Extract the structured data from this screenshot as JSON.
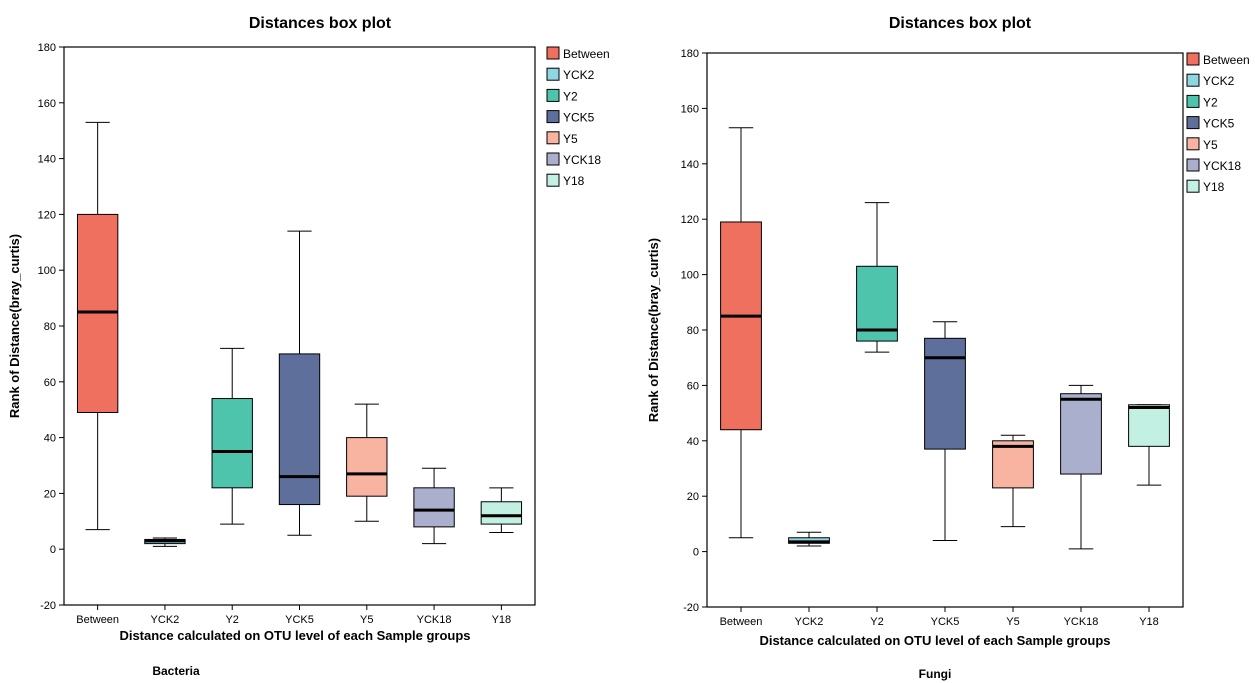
{
  "panels": [
    {
      "label": "Bacteria"
    },
    {
      "label": "Fungi"
    }
  ],
  "chart_data": [
    {
      "type": "box",
      "title": "Distances box plot",
      "xlabel": "Distance calculated on OTU level of each Sample groups",
      "ylabel": "Rank of Distance(bray_curtis)",
      "ylim": [
        -20,
        180
      ],
      "yticks": [
        -20,
        0,
        20,
        40,
        60,
        80,
        100,
        120,
        140,
        160,
        180
      ],
      "grid": false,
      "legend_position": "right",
      "categories": [
        "Between",
        "YCK2",
        "Y2",
        "YCK5",
        "Y5",
        "YCK18",
        "Y18"
      ],
      "colors": [
        "#F07060",
        "#8ED6E2",
        "#4FC4AC",
        "#5F6F9C",
        "#F8B4A0",
        "#A9AFCC",
        "#C2F1E3"
      ],
      "boxes": [
        {
          "min": 7,
          "q1": 49,
          "median": 85,
          "q3": 120,
          "max": 153
        },
        {
          "min": 1,
          "q1": 2,
          "median": 3,
          "q3": 3.5,
          "max": 4
        },
        {
          "min": 9,
          "q1": 22,
          "median": 35,
          "q3": 54,
          "max": 72
        },
        {
          "min": 5,
          "q1": 16,
          "median": 26,
          "q3": 70,
          "max": 114
        },
        {
          "min": 10,
          "q1": 19,
          "median": 27,
          "q3": 40,
          "max": 52
        },
        {
          "min": 2,
          "q1": 8,
          "median": 14,
          "q3": 22,
          "max": 29
        },
        {
          "min": 6,
          "q1": 9,
          "median": 12,
          "q3": 17,
          "max": 22
        }
      ]
    },
    {
      "type": "box",
      "title": "Distances box plot",
      "xlabel": "Distance calculated on OTU level of each Sample groups",
      "ylabel": "Rank of Distance(bray_curtis)",
      "ylim": [
        -20,
        180
      ],
      "yticks": [
        -20,
        0,
        20,
        40,
        60,
        80,
        100,
        120,
        140,
        160,
        180
      ],
      "grid": false,
      "legend_position": "right",
      "categories": [
        "Between",
        "YCK2",
        "Y2",
        "YCK5",
        "Y5",
        "YCK18",
        "Y18"
      ],
      "colors": [
        "#F07060",
        "#8ED6E2",
        "#4FC4AC",
        "#5F6F9C",
        "#F8B4A0",
        "#A9AFCC",
        "#C2F1E3"
      ],
      "boxes": [
        {
          "min": 5,
          "q1": 44,
          "median": 85,
          "q3": 119,
          "max": 153
        },
        {
          "min": 2,
          "q1": 3,
          "median": 3.5,
          "q3": 5,
          "max": 7
        },
        {
          "min": 72,
          "q1": 76,
          "median": 80,
          "q3": 103,
          "max": 126
        },
        {
          "min": 4,
          "q1": 37,
          "median": 70,
          "q3": 77,
          "max": 83
        },
        {
          "min": 9,
          "q1": 23,
          "median": 38,
          "q3": 40,
          "max": 42
        },
        {
          "min": 1,
          "q1": 28,
          "median": 55,
          "q3": 57,
          "max": 60
        },
        {
          "min": 24,
          "q1": 38,
          "median": 52,
          "q3": 53,
          "max": 53
        }
      ]
    }
  ]
}
